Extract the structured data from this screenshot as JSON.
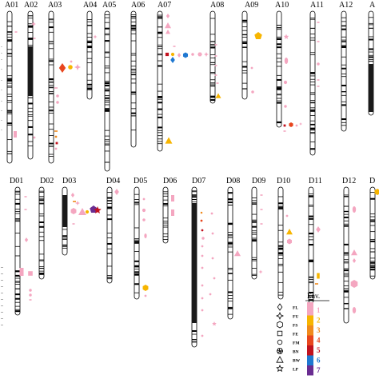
{
  "figure": {
    "chromosomes_top": [
      "A01",
      "A02",
      "A03",
      "A04",
      "A05",
      "A06",
      "A07",
      "A08",
      "A09",
      "A10",
      "A11",
      "A12",
      "A"
    ],
    "chromosomes_bottom": [
      "D01",
      "D02",
      "D03",
      "D04",
      "D05",
      "D06",
      "D07",
      "D08",
      "D09",
      "D10",
      "D11",
      "D12",
      "D"
    ],
    "legend": {
      "title": "Env.",
      "traits": [
        {
          "symbol": "diamond",
          "code": "FL"
        },
        {
          "symbol": "four-point-star",
          "code": "FU"
        },
        {
          "symbol": "hexagon",
          "code": "FS"
        },
        {
          "symbol": "square",
          "code": "FE"
        },
        {
          "symbol": "circle",
          "code": "FM"
        },
        {
          "symbol": "flower",
          "code": "BN"
        },
        {
          "symbol": "triangle",
          "code": "BW"
        },
        {
          "symbol": "star",
          "code": "LP"
        }
      ],
      "environments": [
        {
          "label": "1",
          "color": "#f4a6c0"
        },
        {
          "label": "2",
          "color": "#f7b500"
        },
        {
          "label": "3",
          "color": "#f08a1c"
        },
        {
          "label": "4",
          "color": "#e8461e"
        },
        {
          "label": "5",
          "color": "#c1121f"
        },
        {
          "label": "6",
          "color": "#1f78d1"
        },
        {
          "label": "7",
          "color": "#6a2c91"
        }
      ]
    }
  }
}
